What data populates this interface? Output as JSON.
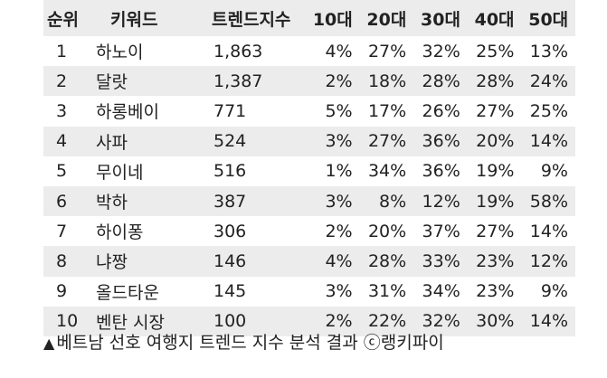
{
  "table": {
    "headers": [
      "순위",
      "키워드",
      "트렌드지수",
      "10대",
      "20대",
      "30대",
      "40대",
      "50대"
    ],
    "rows": [
      [
        "1",
        "하노이",
        "1,863",
        "4%",
        "27%",
        "32%",
        "25%",
        "13%"
      ],
      [
        "2",
        "달랏",
        "1,387",
        "2%",
        "18%",
        "28%",
        "28%",
        "24%"
      ],
      [
        "3",
        "하롱베이",
        "771",
        "5%",
        "17%",
        "26%",
        "27%",
        "25%"
      ],
      [
        "4",
        "사파",
        "524",
        "3%",
        "27%",
        "36%",
        "20%",
        "14%"
      ],
      [
        "5",
        "무이네",
        "516",
        "1%",
        "34%",
        "36%",
        "19%",
        "9%"
      ],
      [
        "6",
        "박하",
        "387",
        "3%",
        "8%",
        "12%",
        "19%",
        "58%"
      ],
      [
        "7",
        "하이퐁",
        "306",
        "2%",
        "20%",
        "37%",
        "27%",
        "14%"
      ],
      [
        "8",
        "냐짱",
        "146",
        "4%",
        "28%",
        "33%",
        "23%",
        "12%"
      ],
      [
        "9",
        "올드타운",
        "145",
        "3%",
        "31%",
        "34%",
        "23%",
        "9%"
      ],
      [
        "10",
        "벤탄 시장",
        "100",
        "2%",
        "22%",
        "32%",
        "30%",
        "14%"
      ]
    ]
  },
  "caption": {
    "marker": "▲",
    "text": "베트남 선호 여행지 트렌드 지수 분석 결과 ",
    "copyright_symbol": "ⓒ",
    "source": "랭키파이"
  },
  "colors": {
    "stripe": "#ececec",
    "text": "#222222"
  }
}
